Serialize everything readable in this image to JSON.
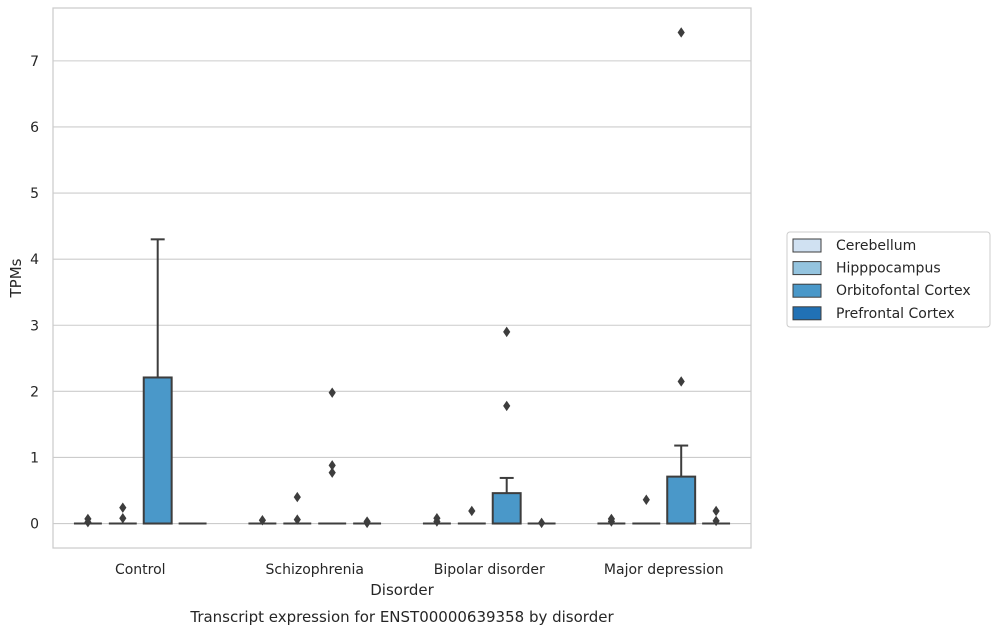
{
  "chart_data": {
    "type": "box",
    "title": "",
    "caption": "Transcript expression for ENST00000639358 by disorder",
    "xlabel": "Disorder",
    "ylabel": "TPMs",
    "ylim": [
      -0.37,
      7.8
    ],
    "yticks": [
      "0",
      "1",
      "2",
      "3",
      "4",
      "5",
      "6",
      "7"
    ],
    "categories": [
      "Control",
      "Schizophrenia",
      "Bipolar disorder",
      "Major depression"
    ],
    "grid": "horizontal",
    "legend_position": "right",
    "series": [
      {
        "name": "Cerebellum",
        "color": "#d0e1f2",
        "boxes": [
          {
            "q1": 0,
            "median": 0,
            "q3": 0,
            "whisker_low": 0,
            "whisker_high": 0,
            "outliers": [
              0.02,
              0.07
            ]
          },
          {
            "q1": 0,
            "median": 0,
            "q3": 0,
            "whisker_low": 0,
            "whisker_high": 0,
            "outliers": [
              0.05
            ]
          },
          {
            "q1": 0,
            "median": 0,
            "q3": 0,
            "whisker_low": 0,
            "whisker_high": 0,
            "outliers": [
              0.03,
              0.08
            ]
          },
          {
            "q1": 0,
            "median": 0,
            "q3": 0,
            "whisker_low": 0,
            "whisker_high": 0,
            "outliers": [
              0.03,
              0.07
            ]
          }
        ]
      },
      {
        "name": "Hipppocampus",
        "color": "#94c4df",
        "boxes": [
          {
            "q1": 0,
            "median": 0,
            "q3": 0,
            "whisker_low": 0,
            "whisker_high": 0,
            "outliers": [
              0.08,
              0.24
            ]
          },
          {
            "q1": 0,
            "median": 0,
            "q3": 0,
            "whisker_low": 0,
            "whisker_high": 0,
            "outliers": [
              0.06,
              0.4
            ]
          },
          {
            "q1": 0,
            "median": 0,
            "q3": 0,
            "whisker_low": 0,
            "whisker_high": 0,
            "outliers": [
              0.19
            ]
          },
          {
            "q1": 0,
            "median": 0,
            "q3": 0,
            "whisker_low": 0,
            "whisker_high": 0,
            "outliers": [
              0.36
            ]
          }
        ]
      },
      {
        "name": "Orbitofontal Cortex",
        "color": "#4a98c9",
        "boxes": [
          {
            "q1": 0,
            "median": 0,
            "q3": 2.21,
            "whisker_low": 0,
            "whisker_high": 4.3,
            "outliers": []
          },
          {
            "q1": 0,
            "median": 0,
            "q3": 0,
            "whisker_low": 0,
            "whisker_high": 0,
            "outliers": [
              0.77,
              0.88,
              1.98
            ]
          },
          {
            "q1": 0,
            "median": 0,
            "q3": 0.46,
            "whisker_low": 0,
            "whisker_high": 0.69,
            "outliers": [
              1.78,
              2.9
            ]
          },
          {
            "q1": 0,
            "median": 0,
            "q3": 0.71,
            "whisker_low": 0,
            "whisker_high": 1.18,
            "outliers": [
              2.15,
              7.43
            ]
          }
        ]
      },
      {
        "name": "Prefrontal Cortex",
        "color": "#2171b5",
        "boxes": [
          {
            "q1": 0,
            "median": 0,
            "q3": 0,
            "whisker_low": 0,
            "whisker_high": 0,
            "outliers": []
          },
          {
            "q1": 0,
            "median": 0,
            "q3": 0,
            "whisker_low": 0,
            "whisker_high": 0,
            "outliers": [
              0.01,
              0.03
            ]
          },
          {
            "q1": 0,
            "median": 0,
            "q3": 0,
            "whisker_low": 0,
            "whisker_high": 0,
            "outliers": [
              0.01
            ]
          },
          {
            "q1": 0,
            "median": 0,
            "q3": 0,
            "whisker_low": 0,
            "whisker_high": 0,
            "outliers": [
              0.04,
              0.19
            ]
          }
        ]
      }
    ]
  }
}
